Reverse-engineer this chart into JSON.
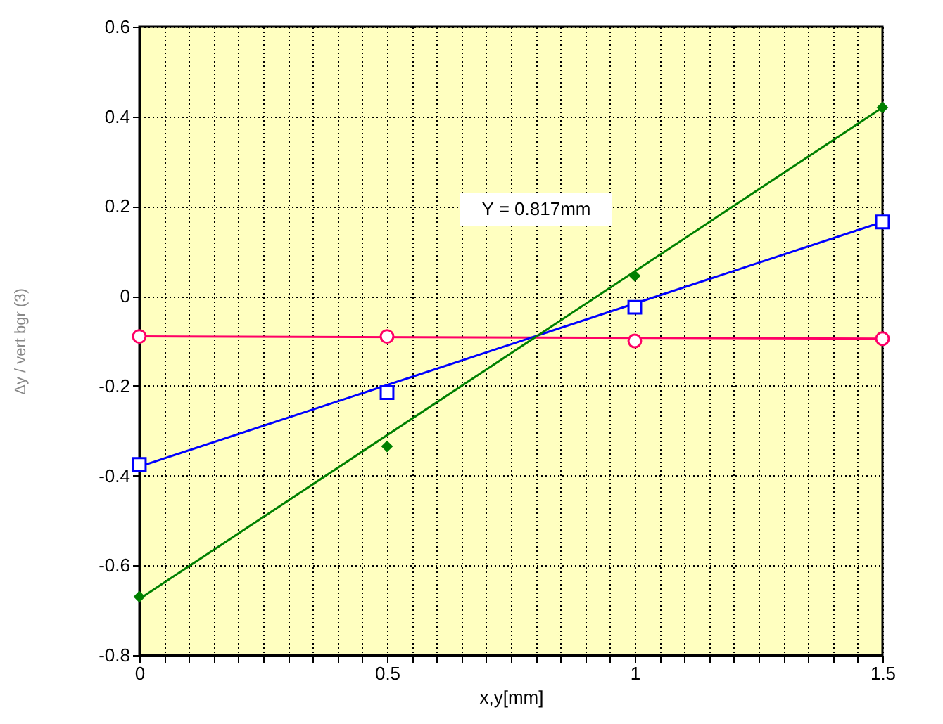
{
  "chart_data": {
    "type": "scatter",
    "xlabel": "x,y[mm]",
    "ylabel": "Δy / vert bgr (3)",
    "xlim": [
      0,
      1.5
    ],
    "ylim": [
      -0.8,
      0.6
    ],
    "xticks": [
      0,
      {
        "value": 0.05,
        "label": null
      },
      {
        "value": 0.1,
        "label": null
      },
      {
        "value": 0.15,
        "label": null
      },
      {
        "value": 0.2,
        "label": null
      },
      {
        "value": 0.25,
        "label": null
      },
      {
        "value": 0.3,
        "label": null
      },
      {
        "value": 0.35,
        "label": null
      },
      {
        "value": 0.4,
        "label": null
      },
      {
        "value": 0.45,
        "label": null
      },
      0.5,
      {
        "value": 0.55,
        "label": null
      },
      {
        "value": 0.6,
        "label": null
      },
      {
        "value": 0.65,
        "label": null
      },
      {
        "value": 0.7,
        "label": null
      },
      {
        "value": 0.75,
        "label": null
      },
      {
        "value": 0.8,
        "label": null
      },
      {
        "value": 0.85,
        "label": null
      },
      {
        "value": 0.9,
        "label": null
      },
      {
        "value": 0.95,
        "label": null
      },
      1,
      {
        "value": 1.05,
        "label": null
      },
      {
        "value": 1.1,
        "label": null
      },
      {
        "value": 1.15,
        "label": null
      },
      {
        "value": 1.2,
        "label": null
      },
      {
        "value": 1.25,
        "label": null
      },
      {
        "value": 1.3,
        "label": null
      },
      {
        "value": 1.35,
        "label": null
      },
      {
        "value": 1.4,
        "label": null
      },
      {
        "value": 1.45,
        "label": null
      },
      1.5
    ],
    "yticks": [
      -0.8,
      -0.6,
      -0.4,
      -0.2,
      0,
      0.2,
      0.4,
      0.6
    ],
    "grid": true,
    "annotations": [
      "Y = 0.817mm"
    ],
    "series": [
      {
        "type": "line",
        "color": "#ff0066",
        "x": [
          0,
          1.5
        ],
        "values": [
          -0.09,
          -0.095
        ],
        "marker": "none"
      },
      {
        "type": "line",
        "color": "#0000ff",
        "x": [
          0,
          1.5
        ],
        "values": [
          -0.38,
          0.165
        ],
        "marker": "none"
      },
      {
        "type": "line",
        "color": "#008000",
        "x": [
          0,
          1.5
        ],
        "values": [
          -0.675,
          0.42
        ],
        "marker": "none"
      },
      {
        "color": "#ff0066",
        "x": [
          0,
          0.5,
          1,
          1.5
        ],
        "values": [
          -0.09,
          -0.09,
          -0.1,
          -0.095
        ],
        "marker": "circle"
      },
      {
        "color": "#0000ff",
        "x": [
          0,
          0.5,
          1,
          1.5
        ],
        "values": [
          -0.375,
          -0.215,
          -0.025,
          0.165
        ],
        "marker": "square"
      },
      {
        "color": "#008000",
        "x": [
          0,
          0.5,
          1,
          1.5
        ],
        "values": [
          -0.67,
          -0.335,
          0.045,
          0.42
        ],
        "marker": "diamond"
      }
    ]
  }
}
